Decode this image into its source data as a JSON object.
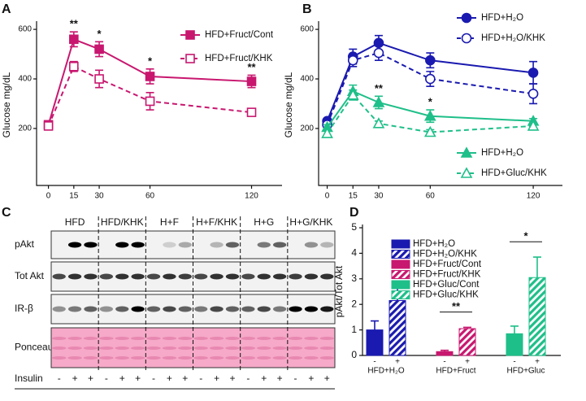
{
  "chart_data": [
    {
      "type": "line",
      "panel": "A",
      "y_label": "Glucose mg/dL",
      "x": [
        0,
        15,
        30,
        60,
        120
      ],
      "xlim": [
        -7,
        138
      ],
      "xticks": [
        0,
        15,
        30,
        60,
        120
      ],
      "ylim": [
        -30,
        620
      ],
      "yticks": [
        200,
        400,
        600
      ],
      "legend": "upper right",
      "series": [
        {
          "name": "HFD+Fruct/Cont",
          "color": "#c8176f",
          "marker": "square",
          "line_style": "solid",
          "filled": true,
          "values": [
            215,
            560,
            520,
            410,
            390
          ],
          "errors": [
            8,
            30,
            30,
            30,
            25
          ]
        },
        {
          "name": "HFD+Fruct/KHK",
          "color": "#c8176f",
          "marker": "square",
          "line_style": "dashed",
          "filled": false,
          "values": [
            210,
            450,
            400,
            310,
            265
          ],
          "errors": [
            8,
            20,
            35,
            35,
            15
          ]
        }
      ],
      "significance": [
        {
          "x": 15,
          "text": "**"
        },
        {
          "x": 30,
          "text": "*"
        },
        {
          "x": 60,
          "text": "*"
        },
        {
          "x": 120,
          "text": "**"
        }
      ]
    },
    {
      "type": "line",
      "panel": "B",
      "y_label": "Glucose mg/dL",
      "x": [
        0,
        15,
        30,
        60,
        120
      ],
      "xlim": [
        -5,
        137
      ],
      "xticks": [
        0,
        15,
        30,
        60,
        120
      ],
      "ylim": [
        -30,
        620
      ],
      "yticks": [
        200,
        400,
        600
      ],
      "series": [
        {
          "name": "HFD+H₂O",
          "color": "#1a1ab0",
          "marker": "circle",
          "line_style": "solid",
          "filled": true,
          "values": [
            230,
            490,
            545,
            475,
            425
          ],
          "errors": [
            10,
            30,
            30,
            30,
            45
          ]
        },
        {
          "name": "HFD+H₂O/KHK",
          "color": "#1a1ab0",
          "marker": "circle",
          "line_style": "dashed",
          "filled": false,
          "values": [
            215,
            475,
            505,
            400,
            340
          ],
          "errors": [
            10,
            25,
            30,
            30,
            40
          ]
        },
        {
          "name": "HFD+H₂O",
          "color": "#1fbf8a",
          "marker": "triangle",
          "line_style": "solid",
          "filled": true,
          "values": [
            205,
            350,
            305,
            250,
            230
          ],
          "errors": [
            10,
            25,
            25,
            25,
            10
          ]
        },
        {
          "name": "HFD+Gluc/KHK",
          "color": "#1fbf8a",
          "marker": "triangle",
          "line_style": "dashed",
          "filled": false,
          "values": [
            180,
            335,
            220,
            185,
            210
          ],
          "errors": [
            10,
            20,
            10,
            10,
            10
          ]
        }
      ],
      "significance": [
        {
          "x": 30,
          "text": "**"
        },
        {
          "x": 60,
          "text": "*"
        }
      ]
    },
    {
      "type": "bar",
      "panel": "D",
      "y_label": "pAkt/Tot Akt",
      "categories": [
        "HFD+H₂O",
        "HFD+Fruct",
        "HFD+Gluc"
      ],
      "bar_sublabels": [
        "-",
        "+"
      ],
      "ylim": [
        0,
        5
      ],
      "yticks": [
        0,
        1,
        2,
        3,
        4,
        5
      ],
      "series": [
        {
          "name": "HFD+H₂O",
          "color": "#1a1ab0",
          "hatch": false,
          "values": [
            1.0,
            null,
            null
          ],
          "errors": [
            0.35,
            null,
            null
          ]
        },
        {
          "name": "HFD+H₂O/KHK",
          "color": "#1a1ab0",
          "hatch": true,
          "values": [
            2.15,
            null,
            null
          ],
          "errors": [
            0.6,
            null,
            null
          ]
        },
        {
          "name": "HFD+Fruct/Cont",
          "color": "#c8176f",
          "hatch": false,
          "values": [
            null,
            0.15,
            null
          ],
          "errors": [
            null,
            0.05,
            null
          ]
        },
        {
          "name": "HFD+Fruct/KHK",
          "color": "#c8176f",
          "hatch": true,
          "values": [
            null,
            1.05,
            null
          ],
          "errors": [
            null,
            0.05,
            null
          ]
        },
        {
          "name": "HFD+Gluc/Cont",
          "color": "#1fbf8a",
          "hatch": false,
          "values": [
            null,
            null,
            0.85
          ],
          "errors": [
            null,
            null,
            0.3
          ]
        },
        {
          "name": "HFD+Gluc/KHK",
          "color": "#1fbf8a",
          "hatch": true,
          "values": [
            null,
            null,
            3.05
          ],
          "errors": [
            null,
            null,
            0.8
          ]
        }
      ],
      "significance": [
        {
          "category": "HFD+Fruct",
          "text": "**"
        },
        {
          "category": "HFD+Gluc",
          "text": "*"
        }
      ]
    }
  ],
  "blot": {
    "panel": "C",
    "groups": [
      "HFD",
      "HFD/KHK",
      "H+F",
      "H+F/KHK",
      "H+G",
      "H+G/KHK"
    ],
    "rows": [
      "pAkt",
      "Tot Akt",
      "IR-β",
      "Ponceau"
    ],
    "insulin_label": "Insulin",
    "insulin_signs": [
      "-",
      "+",
      "+"
    ]
  }
}
